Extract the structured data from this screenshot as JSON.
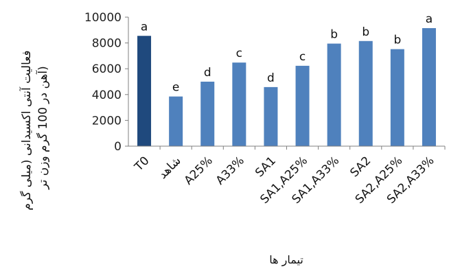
{
  "chart_data": {
    "type": "bar",
    "categories": [
      "T0",
      "شاهد",
      "A25%",
      "A33%",
      "SA1",
      "SA1,A25%",
      "SA1,A33%",
      "SA2",
      "SA2,A25%",
      "SA2,A33%"
    ],
    "values": [
      8550,
      3850,
      5000,
      6480,
      4580,
      6230,
      7950,
      8150,
      7520,
      9150
    ],
    "letters": [
      "a",
      "e",
      "d",
      "c",
      "d",
      "c",
      "b",
      "b",
      "b",
      "a"
    ],
    "highlight_index": 0,
    "colors": {
      "bar": "#4f81bd",
      "highlight": "#1f497d",
      "axis": "#7f7f7f"
    },
    "ylim": [
      0,
      10000
    ],
    "yticks": [
      0,
      2000,
      4000,
      6000,
      8000,
      10000
    ],
    "ylabel_line1": "فعالیت آنتی اکسیدانی (میلی گرم",
    "ylabel_line2": "آهن در 100 گرم وزن تر)",
    "xlabel": "تیمار ها",
    "grid": false
  }
}
